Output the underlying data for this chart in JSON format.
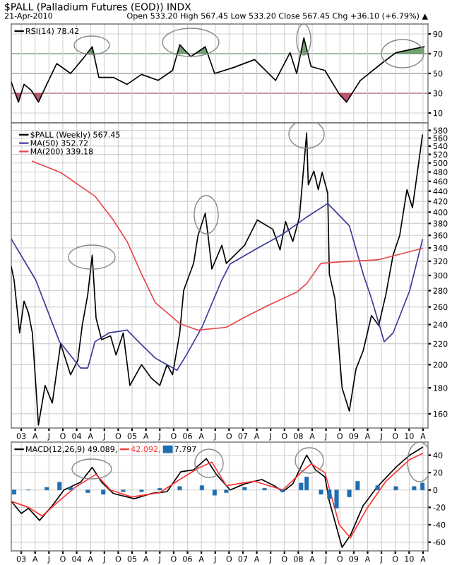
{
  "chart_data": [
    {
      "type": "line",
      "title": "$PALL (Palladium Futures (EOD)) INDX",
      "subtitle": "21-Apr-2010",
      "annotations": [
        "Open 533.20 High 567.45 Low 533.20 Close 567.45 Chg +36.10 (+6.79%) ▲"
      ],
      "x": [
        2002.82,
        2002.95,
        2003.05,
        2003.18,
        2003.31,
        2003.46,
        2003.64,
        2003.89,
        2004.1,
        2004.28,
        2004.4,
        2004.66,
        2004.91,
        2005.17,
        2005.47,
        2005.73,
        2005.86,
        2006.06,
        2006.32,
        2006.49,
        2006.83,
        2007.21,
        2007.59,
        2007.85,
        2007.97,
        2008.1,
        2008.23,
        2008.48,
        2008.74,
        2008.87,
        2009.12,
        2009.5,
        2009.76,
        2010.01,
        2010.27
      ],
      "series": [
        {
          "name": "RSI(14) 78.42",
          "color": "#000000",
          "values": [
            41,
            21,
            39,
            33,
            21,
            39,
            60,
            50,
            64,
            77,
            46,
            46,
            39,
            49,
            43,
            53,
            79,
            67,
            77,
            50,
            56,
            64,
            43,
            71,
            50,
            86,
            57,
            53,
            29,
            21,
            43,
            60,
            71,
            74,
            77
          ]
        }
      ],
      "ref_lines": [
        {
          "axis": "y",
          "value": 70,
          "color": "#4f8a4f"
        },
        {
          "axis": "y",
          "value": 50,
          "color": "#888888"
        },
        {
          "axis": "y",
          "value": 30,
          "color": "#a8324a"
        }
      ],
      "xlim": [
        2002.82,
        2010.34
      ],
      "xticks": [
        {
          "value": 2003,
          "label": null
        },
        {
          "value": 2003.25,
          "label": null
        },
        {
          "value": 2003.5,
          "label": null
        },
        {
          "value": 2003.75,
          "label": null
        },
        {
          "value": 2004,
          "label": null
        },
        {
          "value": 2004.25,
          "label": null
        },
        {
          "value": 2004.5,
          "label": null
        },
        {
          "value": 2004.75,
          "label": null
        },
        {
          "value": 2005,
          "label": null
        },
        {
          "value": 2005.25,
          "label": null
        },
        {
          "value": 2005.5,
          "label": null
        },
        {
          "value": 2005.75,
          "label": null
        },
        {
          "value": 2006,
          "label": null
        },
        {
          "value": 2006.25,
          "label": null
        },
        {
          "value": 2006.5,
          "label": null
        },
        {
          "value": 2006.75,
          "label": null
        },
        {
          "value": 2007,
          "label": null
        },
        {
          "value": 2007.25,
          "label": null
        },
        {
          "value": 2007.5,
          "label": null
        },
        {
          "value": 2007.75,
          "label": null
        },
        {
          "value": 2008,
          "label": null
        },
        {
          "value": 2008.25,
          "label": null
        },
        {
          "value": 2008.5,
          "label": null
        },
        {
          "value": 2008.75,
          "label": null
        },
        {
          "value": 2009,
          "label": null
        },
        {
          "value": 2009.25,
          "label": null
        },
        {
          "value": 2009.5,
          "label": null
        },
        {
          "value": 2009.75,
          "label": null
        },
        {
          "value": 2010,
          "label": null
        },
        {
          "value": 2010.25,
          "label": null
        }
      ],
      "ylim": [
        0,
        100
      ],
      "yticks": [
        10,
        30,
        50,
        70,
        90
      ],
      "grid": true,
      "legend": "top left",
      "tick_labels": "y"
    },
    {
      "type": "line",
      "log": true,
      "series": [
        {
          "name": "$PALL (Weekly) 567.45",
          "color": "#000000",
          "x": [
            2002.82,
            2002.87,
            2002.97,
            2003.05,
            2003.13,
            2003.2,
            2003.31,
            2003.43,
            2003.56,
            2003.71,
            2003.89,
            2004.02,
            2004.1,
            2004.2,
            2004.28,
            2004.35,
            2004.45,
            2004.61,
            2004.71,
            2004.84,
            2004.96,
            2005.17,
            2005.35,
            2005.5,
            2005.63,
            2005.73,
            2005.86,
            2005.93,
            2006.11,
            2006.19,
            2006.32,
            2006.37,
            2006.44,
            2006.62,
            2006.7,
            2007.03,
            2007.26,
            2007.54,
            2007.67,
            2007.77,
            2007.9,
            2008.02,
            2008.15,
            2008.18,
            2008.28,
            2008.36,
            2008.43,
            2008.53,
            2008.56,
            2008.66,
            2008.79,
            2008.92,
            2009.04,
            2009.17,
            2009.32,
            2009.45,
            2009.58,
            2009.71,
            2009.83,
            2009.96,
            2010.06,
            2010.14,
            2010.24
          ],
          "values": [
            312,
            294,
            231,
            267,
            253,
            231,
            152,
            182,
            168,
            220,
            191,
            204,
            239,
            275,
            329,
            247,
            224,
            228,
            209,
            231,
            182,
            200,
            188,
            182,
            200,
            191,
            231,
            280,
            317,
            360,
            398,
            360,
            309,
            344,
            317,
            344,
            386,
            370,
            337,
            383,
            350,
            391,
            573,
            453,
            482,
            443,
            479,
            436,
            302,
            270,
            180,
            162,
            196,
            213,
            250,
            239,
            275,
            329,
            360,
            443,
            408,
            472,
            567.45
          ]
        },
        {
          "name": "MA(50) 352.72",
          "color": "#3a3a9a",
          "x": [
            2002.82,
            2003.26,
            2003.69,
            2004.07,
            2004.2,
            2004.33,
            2004.58,
            2004.91,
            2005.17,
            2005.42,
            2005.81,
            2005.98,
            2006.26,
            2006.62,
            2006.77,
            2007.21,
            2007.72,
            2008.15,
            2008.53,
            2008.92,
            2009.17,
            2009.32,
            2009.55,
            2009.71,
            2010.01,
            2010.24
          ],
          "values": [
            354,
            294,
            222,
            197,
            197,
            222,
            231,
            234,
            219,
            206,
            195,
            209,
            237,
            294,
            316,
            337,
            362,
            391,
            416,
            376,
            302,
            270,
            222,
            231,
            280,
            352.72
          ]
        },
        {
          "name": "MA(200) 339.18",
          "color": "#e8474a",
          "x": [
            2003.2,
            2003.71,
            2004.33,
            2004.66,
            2004.91,
            2005.17,
            2005.42,
            2005.86,
            2006.19,
            2006.7,
            2007.03,
            2007.46,
            2007.97,
            2008.15,
            2008.41,
            2008.74,
            2009.43,
            2010.24
          ],
          "values": [
            504,
            479,
            430,
            386,
            350,
            302,
            265,
            241,
            234,
            237,
            248,
            262,
            278,
            289,
            317,
            319,
            322,
            339.18
          ]
        }
      ],
      "xlim": [
        2002.82,
        2010.34
      ],
      "xticks": [
        {
          "value": 2003,
          "label": "03"
        },
        {
          "value": 2003.25,
          "label": "A"
        },
        {
          "value": 2003.5,
          "label": "J"
        },
        {
          "value": 2003.75,
          "label": "O"
        },
        {
          "value": 2004,
          "label": "04"
        },
        {
          "value": 2004.25,
          "label": "A"
        },
        {
          "value": 2004.5,
          "label": "J"
        },
        {
          "value": 2004.75,
          "label": "O"
        },
        {
          "value": 2005,
          "label": "05"
        },
        {
          "value": 2005.25,
          "label": "A"
        },
        {
          "value": 2005.5,
          "label": "J"
        },
        {
          "value": 2005.75,
          "label": "O"
        },
        {
          "value": 2006,
          "label": "06"
        },
        {
          "value": 2006.25,
          "label": "A"
        },
        {
          "value": 2006.5,
          "label": "J"
        },
        {
          "value": 2006.75,
          "label": "O"
        },
        {
          "value": 2007,
          "label": "07"
        },
        {
          "value": 2007.25,
          "label": "A"
        },
        {
          "value": 2007.5,
          "label": "J"
        },
        {
          "value": 2007.75,
          "label": "O"
        },
        {
          "value": 2008,
          "label": "08"
        },
        {
          "value": 2008.25,
          "label": "A"
        },
        {
          "value": 2008.5,
          "label": "J"
        },
        {
          "value": 2008.75,
          "label": "O"
        },
        {
          "value": 2009,
          "label": "09"
        },
        {
          "value": 2009.25,
          "label": "A"
        },
        {
          "value": 2009.5,
          "label": "J"
        },
        {
          "value": 2009.75,
          "label": "O"
        },
        {
          "value": 2010,
          "label": "10"
        },
        {
          "value": 2010.25,
          "label": "A"
        }
      ],
      "ylim": [
        150,
        600
      ],
      "yticks": [
        160,
        180,
        200,
        220,
        240,
        260,
        280,
        300,
        320,
        340,
        360,
        380,
        400,
        420,
        440,
        460,
        480,
        500,
        520,
        540,
        560,
        580
      ],
      "grid": true,
      "legend": "top left"
    },
    {
      "type": "line",
      "series": [
        {
          "name": "MACD(12,26,9) 49.089,",
          "color": "#000000",
          "x": [
            2002.82,
            2003.0,
            2003.13,
            2003.33,
            2003.56,
            2003.77,
            2004.07,
            2004.28,
            2004.45,
            2004.66,
            2005.04,
            2005.35,
            2005.63,
            2005.88,
            2006.11,
            2006.34,
            2006.52,
            2006.77,
            2007.03,
            2007.34,
            2007.59,
            2007.72,
            2007.9,
            2008.15,
            2008.31,
            2008.48,
            2008.56,
            2008.79,
            2008.94,
            2009.17,
            2009.43,
            2009.76,
            2010.01,
            2010.24
          ],
          "values": [
            -13,
            -27,
            -21,
            -35,
            -18,
            0,
            9,
            26,
            9,
            -4,
            -10,
            -4,
            -2,
            21,
            23,
            36,
            18,
            0,
            7,
            12,
            4,
            -2,
            7,
            40,
            23,
            15,
            -13,
            -66,
            -52,
            -18,
            4,
            26,
            40,
            49
          ]
        },
        {
          "name": "42.092,",
          "color": "#ff3333",
          "x": [
            2002.82,
            2003.13,
            2003.38,
            2003.64,
            2003.97,
            2004.35,
            2004.61,
            2004.99,
            2005.5,
            2005.86,
            2006.19,
            2006.44,
            2006.7,
            2007.21,
            2007.72,
            2008.05,
            2008.23,
            2008.48,
            2008.74,
            2008.94,
            2009.25,
            2009.58,
            2010.01,
            2010.24
          ],
          "values": [
            -13,
            -20,
            -30,
            -15,
            3,
            18,
            0,
            -8,
            -3,
            12,
            25,
            32,
            5,
            10,
            0,
            20,
            30,
            20,
            -40,
            -55,
            -20,
            10,
            35,
            42
          ]
        },
        {
          "name": "7.797",
          "type": "bar",
          "color": "#1f6fb0",
          "x": [
            2002.87,
            2003.13,
            2003.46,
            2003.69,
            2003.89,
            2004.2,
            2004.48,
            2004.84,
            2005.17,
            2005.5,
            2005.86,
            2006.26,
            2006.49,
            2006.7,
            2007.03,
            2007.39,
            2007.72,
            2008.05,
            2008.15,
            2008.41,
            2008.56,
            2008.69,
            2008.92,
            2009.07,
            2009.43,
            2009.76,
            2010.09,
            2010.24
          ],
          "values": [
            -5,
            0,
            3,
            9,
            3,
            -3,
            -5,
            -2,
            -2,
            2,
            4,
            5,
            -6,
            -3,
            3,
            2,
            -2,
            8,
            15,
            -5,
            -10,
            -21,
            -8,
            10,
            5,
            4,
            4,
            8
          ]
        }
      ],
      "xlim": [
        2002.82,
        2010.34
      ],
      "xticks": [
        {
          "value": 2003,
          "label": "03"
        },
        {
          "value": 2003.25,
          "label": "A"
        },
        {
          "value": 2003.5,
          "label": "J"
        },
        {
          "value": 2003.75,
          "label": "O"
        },
        {
          "value": 2004,
          "label": "04"
        },
        {
          "value": 2004.25,
          "label": "A"
        },
        {
          "value": 2004.5,
          "label": "J"
        },
        {
          "value": 2004.75,
          "label": "O"
        },
        {
          "value": 2005,
          "label": "05"
        },
        {
          "value": 2005.25,
          "label": "A"
        },
        {
          "value": 2005.5,
          "label": "J"
        },
        {
          "value": 2005.75,
          "label": "O"
        },
        {
          "value": 2006,
          "label": "06"
        },
        {
          "value": 2006.25,
          "label": "A"
        },
        {
          "value": 2006.5,
          "label": "J"
        },
        {
          "value": 2006.75,
          "label": "O"
        },
        {
          "value": 2007,
          "label": "07"
        },
        {
          "value": 2007.25,
          "label": "A"
        },
        {
          "value": 2007.5,
          "label": "J"
        },
        {
          "value": 2007.75,
          "label": "O"
        },
        {
          "value": 2008,
          "label": "08"
        },
        {
          "value": 2008.25,
          "label": "A"
        },
        {
          "value": 2008.5,
          "label": "J"
        },
        {
          "value": 2008.75,
          "label": "O"
        },
        {
          "value": 2009,
          "label": "09"
        },
        {
          "value": 2009.25,
          "label": "A"
        },
        {
          "value": 2009.5,
          "label": "J"
        },
        {
          "value": 2009.75,
          "label": "O"
        },
        {
          "value": 2010,
          "label": "10"
        },
        {
          "value": 2010.25,
          "label": "A"
        }
      ],
      "ylim": [
        -70,
        55
      ],
      "yticks": [
        -60,
        -40,
        -20,
        0,
        20,
        40
      ],
      "grid": true,
      "legend": "top left"
    }
  ]
}
